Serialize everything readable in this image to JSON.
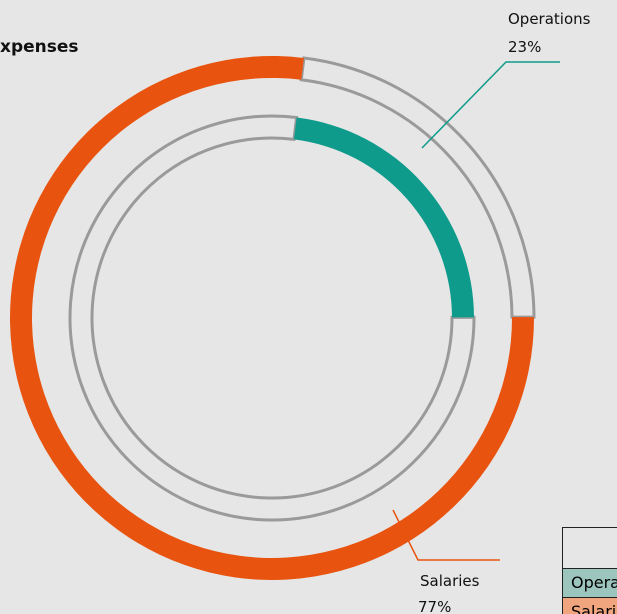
{
  "chart_data": {
    "type": "doughnut",
    "title": "xpenses",
    "categories": [
      "Operations",
      "Salaries"
    ],
    "values": [
      23,
      77
    ],
    "value_labels": [
      "23%",
      "77%"
    ],
    "colors": [
      "#0e9b8c",
      "#e8540f"
    ]
  },
  "table": {
    "rows": [
      [
        "Operations"
      ],
      [
        "Salaries"
      ]
    ]
  }
}
